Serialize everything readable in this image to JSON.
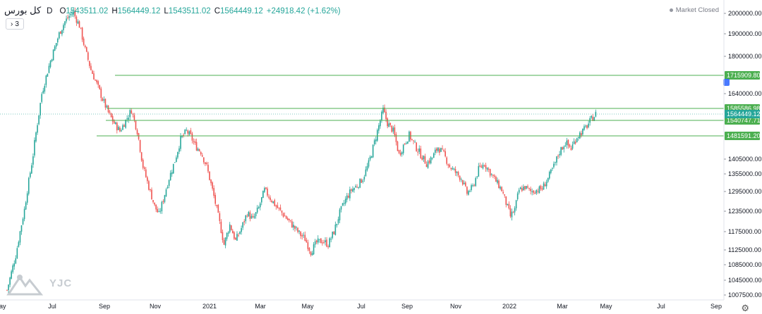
{
  "legend": {
    "symbol": "کل بورس",
    "interval": "D",
    "o_label": "O",
    "o_value": "1543511.02",
    "h_label": "H",
    "h_value": "1564449.12",
    "l_label": "L",
    "l_value": "1543511.02",
    "c_label": "C",
    "c_value": "1564449.12",
    "change": "+24918.42 (+1.62%)"
  },
  "studies_count": "3",
  "market_status": "Market Closed",
  "watermark_text": "YJC",
  "colors": {
    "up": "#26a69a",
    "down": "#ef5350",
    "level": "#4caf50",
    "badge": "#4caf50",
    "last_price_badge": "#26a69a"
  },
  "chart_data": {
    "type": "candlestick",
    "title": "",
    "interval": "D",
    "ylim": [
      1000000,
      2030000
    ],
    "y_axis_labels": [
      "2000000.00",
      "1900000.00",
      "1800000.00",
      "1640000.00",
      "1405000.00",
      "1355000.00",
      "1295000.00",
      "1235000.00",
      "1175000.00",
      "1125000.00",
      "1085000.00",
      "1045000.00",
      "1007500.00"
    ],
    "x_axis_labels": [
      "May",
      "Jul",
      "Sep",
      "Nov",
      "2021",
      "Mar",
      "May",
      "Jul",
      "Sep",
      "Nov",
      "2022",
      "Mar",
      "May",
      "Jul",
      "Sep"
    ],
    "horizontal_levels": [
      {
        "label": "1715909.80",
        "value": 1715909.8
      },
      {
        "label": "1585586.98",
        "value": 1585586.98
      },
      {
        "label": "1540747.71",
        "value": 1540747.71
      },
      {
        "label": "1481591.20",
        "value": 1481591.2
      }
    ],
    "last_price": {
      "label": "1564449.12",
      "value": 1564449.12
    },
    "series_close": [
      [
        0,
        1020000
      ],
      [
        6,
        1110000
      ],
      [
        12,
        1240000
      ],
      [
        18,
        1420000
      ],
      [
        24,
        1640000
      ],
      [
        30,
        1780000
      ],
      [
        36,
        1900000
      ],
      [
        40,
        1960000
      ],
      [
        44,
        1995000
      ],
      [
        46,
        2000000
      ],
      [
        50,
        1940000
      ],
      [
        54,
        1830000
      ],
      [
        58,
        1740000
      ],
      [
        62,
        1680000
      ],
      [
        66,
        1620000
      ],
      [
        70,
        1570000
      ],
      [
        74,
        1530000
      ],
      [
        78,
        1500000
      ],
      [
        82,
        1540000
      ],
      [
        86,
        1580000
      ],
      [
        90,
        1500000
      ],
      [
        94,
        1380000
      ],
      [
        98,
        1310000
      ],
      [
        102,
        1250000
      ],
      [
        105,
        1225000
      ],
      [
        108,
        1270000
      ],
      [
        112,
        1340000
      ],
      [
        116,
        1400000
      ],
      [
        120,
        1470000
      ],
      [
        124,
        1500000
      ],
      [
        127,
        1480000
      ],
      [
        130,
        1450000
      ],
      [
        134,
        1430000
      ],
      [
        138,
        1380000
      ],
      [
        142,
        1300000
      ],
      [
        146,
        1220000
      ],
      [
        150,
        1140000
      ],
      [
        154,
        1195000
      ],
      [
        158,
        1150000
      ],
      [
        162,
        1185000
      ],
      [
        166,
        1230000
      ],
      [
        170,
        1210000
      ],
      [
        174,
        1245000
      ],
      [
        178,
        1300000
      ],
      [
        182,
        1275000
      ],
      [
        186,
        1250000
      ],
      [
        190,
        1230000
      ],
      [
        194,
        1210000
      ],
      [
        198,
        1190000
      ],
      [
        202,
        1170000
      ],
      [
        206,
        1155000
      ],
      [
        210,
        1120000
      ],
      [
        214,
        1145000
      ],
      [
        218,
        1150000
      ],
      [
        222,
        1140000
      ],
      [
        226,
        1175000
      ],
      [
        230,
        1230000
      ],
      [
        234,
        1270000
      ],
      [
        238,
        1300000
      ],
      [
        242,
        1315000
      ],
      [
        246,
        1340000
      ],
      [
        250,
        1390000
      ],
      [
        254,
        1460000
      ],
      [
        258,
        1540000
      ],
      [
        260,
        1580000
      ],
      [
        263,
        1530000
      ],
      [
        267,
        1500000
      ],
      [
        271,
        1420000
      ],
      [
        274,
        1450000
      ],
      [
        278,
        1485000
      ],
      [
        282,
        1450000
      ],
      [
        286,
        1420000
      ],
      [
        290,
        1390000
      ],
      [
        294,
        1410000
      ],
      [
        298,
        1445000
      ],
      [
        302,
        1420000
      ],
      [
        306,
        1380000
      ],
      [
        310,
        1360000
      ],
      [
        314,
        1340000
      ],
      [
        318,
        1290000
      ],
      [
        322,
        1310000
      ],
      [
        326,
        1370000
      ],
      [
        330,
        1390000
      ],
      [
        334,
        1360000
      ],
      [
        338,
        1330000
      ],
      [
        342,
        1300000
      ],
      [
        345,
        1260000
      ],
      [
        348,
        1220000
      ],
      [
        351,
        1240000
      ],
      [
        354,
        1300000
      ],
      [
        358,
        1310000
      ],
      [
        362,
        1295000
      ],
      [
        366,
        1300000
      ],
      [
        370,
        1305000
      ],
      [
        374,
        1340000
      ],
      [
        378,
        1380000
      ],
      [
        382,
        1430000
      ],
      [
        386,
        1460000
      ],
      [
        390,
        1440000
      ],
      [
        394,
        1480000
      ],
      [
        398,
        1500000
      ],
      [
        401,
        1520000
      ],
      [
        404,
        1545000
      ],
      [
        407,
        1564449
      ]
    ]
  }
}
